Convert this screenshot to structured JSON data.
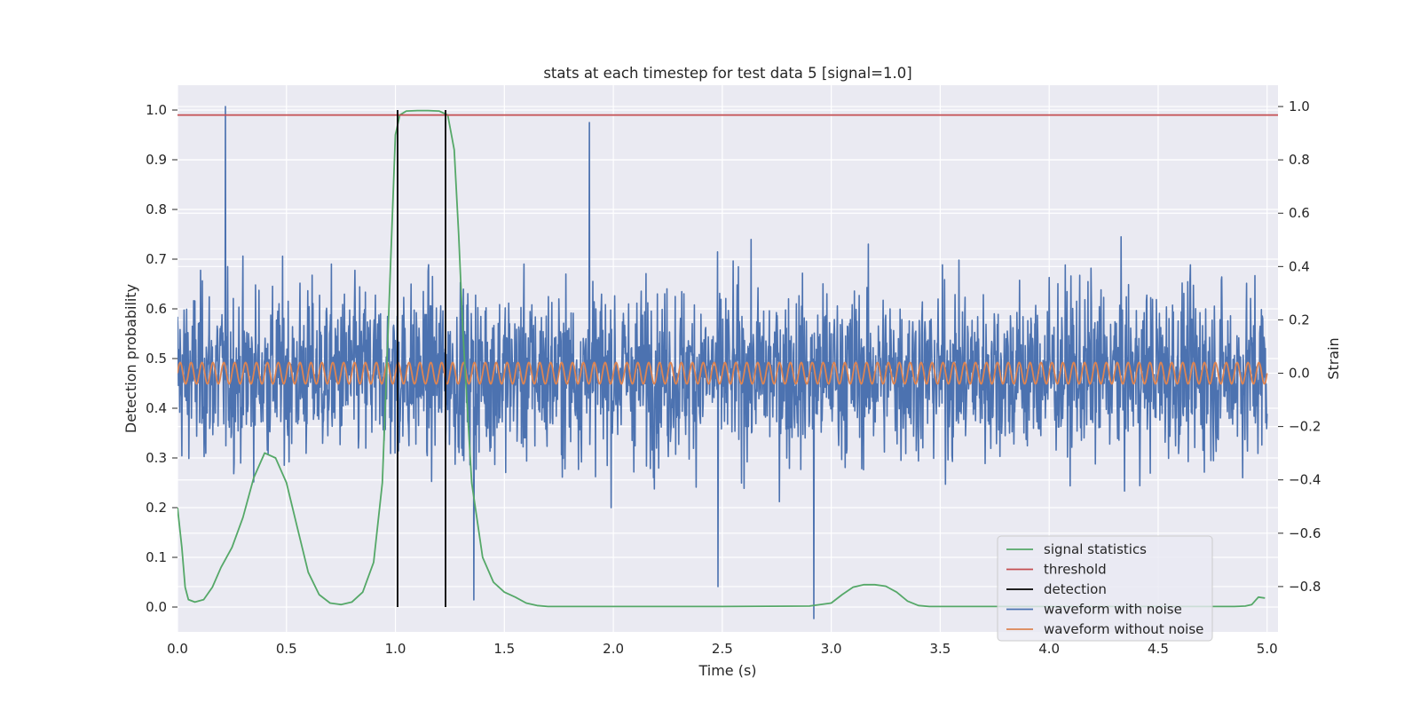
{
  "chart_data": {
    "type": "line",
    "title": "stats at each timestep for test data 5 [signal=1.0]",
    "xlabel": "Time (s)",
    "ylabel": "Detection probability",
    "y2label": "Strain",
    "xlim": [
      0.0,
      5.05
    ],
    "ylim": [
      -0.05,
      1.05
    ],
    "y2lim": [
      -0.97,
      1.08
    ],
    "grid": true,
    "legend_position": "lower-right",
    "x_ticks": [
      "0.0",
      "0.5",
      "1.0",
      "1.5",
      "2.0",
      "2.5",
      "3.0",
      "3.5",
      "4.0",
      "4.5",
      "5.0"
    ],
    "y_ticks": [
      "0.0",
      "0.1",
      "0.2",
      "0.3",
      "0.4",
      "0.5",
      "0.6",
      "0.7",
      "0.8",
      "0.9",
      "1.0"
    ],
    "y2_ticks": [
      "−0.8",
      "−0.6",
      "−0.4",
      "−0.2",
      "0.0",
      "0.2",
      "0.4",
      "0.6",
      "0.8",
      "1.0"
    ],
    "colors": {
      "signal_statistics": "#55a868",
      "threshold": "#c44e52",
      "detection": "#000000",
      "waveform_with_noise": "#4c72b0",
      "waveform_without_noise": "#dd8452",
      "plot_background": "#eaeaf2",
      "grid": "#ffffff"
    },
    "series": [
      {
        "name": "signal statistics",
        "axis": "left",
        "x": [
          0.0,
          0.02,
          0.035,
          0.05,
          0.08,
          0.12,
          0.16,
          0.2,
          0.25,
          0.3,
          0.35,
          0.4,
          0.45,
          0.5,
          0.55,
          0.6,
          0.65,
          0.7,
          0.75,
          0.8,
          0.85,
          0.9,
          0.94,
          0.97,
          1.0,
          1.02,
          1.05,
          1.1,
          1.15,
          1.2,
          1.24,
          1.27,
          1.29,
          1.31,
          1.35,
          1.4,
          1.45,
          1.5,
          1.55,
          1.6,
          1.65,
          1.7,
          2.0,
          2.5,
          2.9,
          3.0,
          3.05,
          3.1,
          3.15,
          3.2,
          3.25,
          3.3,
          3.35,
          3.4,
          3.45,
          3.5,
          4.0,
          4.5,
          4.85,
          4.9,
          4.93,
          4.96,
          4.99
        ],
        "values": [
          0.2,
          0.12,
          0.04,
          0.015,
          0.01,
          0.015,
          0.04,
          0.08,
          0.12,
          0.18,
          0.26,
          0.31,
          0.3,
          0.25,
          0.16,
          0.07,
          0.025,
          0.008,
          0.005,
          0.01,
          0.03,
          0.09,
          0.25,
          0.6,
          0.95,
          0.99,
          0.998,
          0.999,
          0.999,
          0.998,
          0.99,
          0.92,
          0.75,
          0.55,
          0.25,
          0.1,
          0.05,
          0.03,
          0.02,
          0.008,
          0.003,
          0.001,
          0.001,
          0.001,
          0.002,
          0.008,
          0.025,
          0.04,
          0.045,
          0.045,
          0.042,
          0.03,
          0.012,
          0.003,
          0.001,
          0.001,
          0.001,
          0.001,
          0.001,
          0.002,
          0.005,
          0.02,
          0.018
        ]
      },
      {
        "name": "threshold",
        "axis": "left",
        "x": [
          0.0,
          5.05
        ],
        "values": [
          0.99,
          0.99
        ]
      },
      {
        "name": "detection",
        "axis": "left",
        "segments": [
          {
            "x": 1.01,
            "from": 0.0,
            "to": 1.0
          },
          {
            "x": 1.23,
            "from": 0.0,
            "to": 1.0
          }
        ]
      },
      {
        "name": "waveform with noise",
        "axis": "right",
        "description_of_data": "white-noise strain, roughly uniform amplitude about ±0.5 with peaks near ±0.9",
        "x_range": [
          0.0,
          5.0
        ],
        "amplitude_typical": 0.45,
        "amplitude_peak": 0.95,
        "samples": 2500,
        "notable_peaks": [
          {
            "x": 0.22,
            "value": 1.0
          },
          {
            "x": 1.89,
            "value": 0.94
          },
          {
            "x": 2.92,
            "value": -0.92
          },
          {
            "x": 1.36,
            "value": -0.85
          },
          {
            "x": 2.48,
            "value": -0.8
          }
        ]
      },
      {
        "name": "waveform without noise",
        "axis": "right",
        "description_of_data": "sinusoid of constant frequency",
        "x_range": [
          0.0,
          5.0
        ],
        "amplitude": 0.04,
        "cycles": 100
      }
    ],
    "legend": [
      "signal statistics",
      "threshold",
      "detection",
      "waveform with noise",
      "waveform without noise"
    ]
  }
}
